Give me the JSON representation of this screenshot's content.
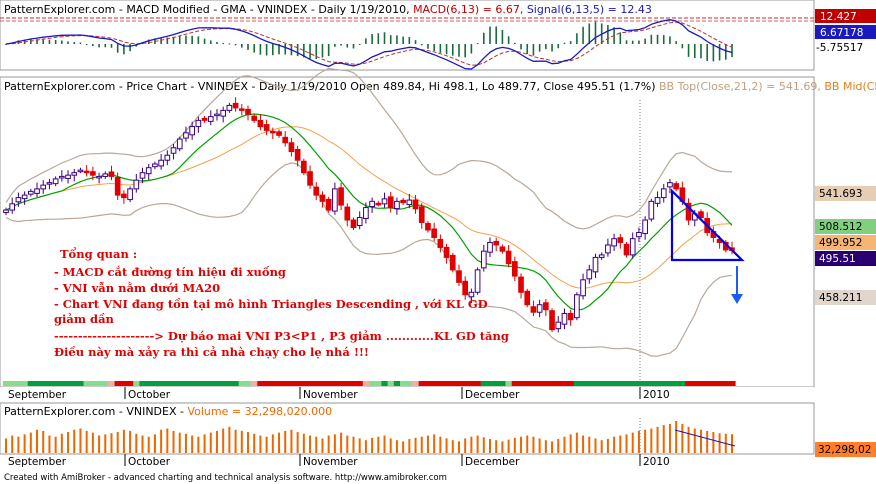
{
  "colors": {
    "up": "#ffffff",
    "up_border": "#3a0085",
    "down": "#e00000",
    "ma20": "#00a000",
    "bb_mid": "#f5a04a",
    "bb_band": "#b8a898",
    "macd": "#1a1ac0",
    "signal": "#c03030",
    "volume": "#ee6600",
    "triangle": "#0000ee",
    "annotation": "#e00000",
    "badge_macd": "#c00000",
    "badge_signal": "#1a1ac0",
    "badge_bbtop": "#e6cdb4",
    "badge_ma20": "#80d080",
    "badge_bbmid": "#f5b575",
    "badge_close": "#2a0070",
    "badge_bblow": "#e0d6cc",
    "badge_volume": "#ff7f2a"
  },
  "macd_panel": {
    "title_parts": [
      {
        "text": "PatternExplorer.com - MACD Modified - GMA - VNINDEX - Daily 1/19/2010, ",
        "color": "#000000"
      },
      {
        "text": "MACD(6,13) = 6.67, ",
        "color": "#c00000"
      },
      {
        "text": "Signal(6,13,5) = 12.43",
        "color": "#1a1ac0"
      }
    ],
    "badges": [
      "12.427",
      "6.67178",
      "-5.75517"
    ]
  },
  "price_panel": {
    "title_parts": [
      {
        "text": "PatternExplorer.com - Price Chart - VNINDEX - Daily 1/19/2010 Open 489.84, Hi 498.1, Lo 489.77, Close 495.51 (1.7%) ",
        "color": "#000000"
      },
      {
        "text": "BB Top(Close,21,2) = 541.69, ",
        "color": "#c0a080"
      },
      {
        "text": "BB Mid(Clo",
        "color": "#e08020"
      }
    ],
    "badges": [
      "541.693",
      "508.512",
      "499.952",
      "495.51",
      "458.211"
    ]
  },
  "volume_panel": {
    "title_parts": [
      {
        "text": "PatternExplorer.com - VNINDEX - ",
        "color": "#000000"
      },
      {
        "text": "Volume = 32,298,020.000",
        "color": "#ee6600"
      }
    ],
    "badge": "32,298,02"
  },
  "x_axis": {
    "months": [
      "September",
      "October",
      "November",
      "December",
      "2010"
    ]
  },
  "annotation": [
    "Tổng quan :",
    "- MACD cắt đường tín hiệu đi xuống",
    "- VNI vẫn nằm dưới MA20",
    "- Chart VNI đang tồn tại mô hình Triangles Descending , với KL GD",
    "giảm dần",
    "---------------------> Dự báo mai  VNI P3<P1 , P3 giảm ............KL GD tăng",
    "Điều này mà xảy ra thì cả nhà chạy cho lẹ nhá !!!"
  ],
  "footer": "Created with AmiBroker - advanced charting and technical analysis software. http://www.amibroker.com",
  "chart_data": {
    "type": "candlestick",
    "symbol": "VNINDEX",
    "date_range": [
      "September 2009",
      "2010-01-19"
    ],
    "last_bar": {
      "date": "1/19/2010",
      "open": 489.84,
      "high": 498.1,
      "low": 489.77,
      "close": 495.51,
      "change_pct": 1.7
    },
    "indicators": {
      "bb_top": 541.693,
      "ma20": 508.512,
      "bb_mid": 499.952,
      "bb_low": 458.211,
      "macd": 6.67178,
      "signal": 12.427,
      "macd_min_label": -5.75517,
      "volume": 32298020
    },
    "closes": [
      528,
      533,
      538,
      540,
      543,
      545,
      548,
      550,
      553,
      555,
      556,
      558,
      560,
      558,
      556,
      555,
      557,
      555,
      540,
      538,
      545,
      552,
      558,
      562,
      565,
      568,
      572,
      578,
      585,
      590,
      595,
      600,
      600,
      603,
      605,
      608,
      612,
      610,
      608,
      605,
      600,
      595,
      592,
      590,
      588,
      582,
      575,
      568,
      558,
      548,
      540,
      535,
      528,
      545,
      532,
      520,
      514,
      522,
      530,
      535,
      533,
      537,
      530,
      535,
      534,
      536,
      529,
      518,
      512,
      506,
      498,
      490,
      480,
      470,
      460,
      462,
      480,
      495,
      502,
      500,
      495,
      485,
      475,
      462,
      452,
      446,
      452,
      448,
      432,
      438,
      445,
      440,
      460,
      472,
      480,
      490,
      492,
      500,
      505,
      502,
      492,
      505,
      510,
      520,
      535,
      538,
      545,
      550,
      545,
      535,
      520,
      525,
      522,
      510,
      506,
      502,
      496,
      495.51
    ],
    "volumes_million": [
      25,
      30,
      28,
      32,
      35,
      40,
      38,
      30,
      28,
      33,
      36,
      40,
      42,
      38,
      35,
      30,
      32,
      34,
      36,
      40,
      38,
      33,
      30,
      28,
      32,
      40,
      42,
      38,
      35,
      33,
      30,
      28,
      32,
      35,
      38,
      42,
      45,
      40,
      38,
      36,
      33,
      30,
      28,
      32,
      35,
      38,
      40,
      36,
      33,
      30,
      28,
      25,
      30,
      32,
      35,
      30,
      28,
      25,
      22,
      26,
      28,
      30,
      25,
      22,
      20,
      24,
      26,
      28,
      30,
      32,
      28,
      25,
      22,
      20,
      25,
      28,
      30,
      27,
      24,
      22,
      20,
      23,
      26,
      28,
      30,
      28,
      25,
      22,
      20,
      24,
      28,
      32,
      35,
      30,
      28,
      25,
      22,
      24,
      28,
      30,
      32,
      35,
      38,
      40,
      42,
      45,
      48,
      50,
      55,
      50,
      45,
      42,
      40,
      38,
      36,
      34,
      33,
      32.3
    ]
  }
}
